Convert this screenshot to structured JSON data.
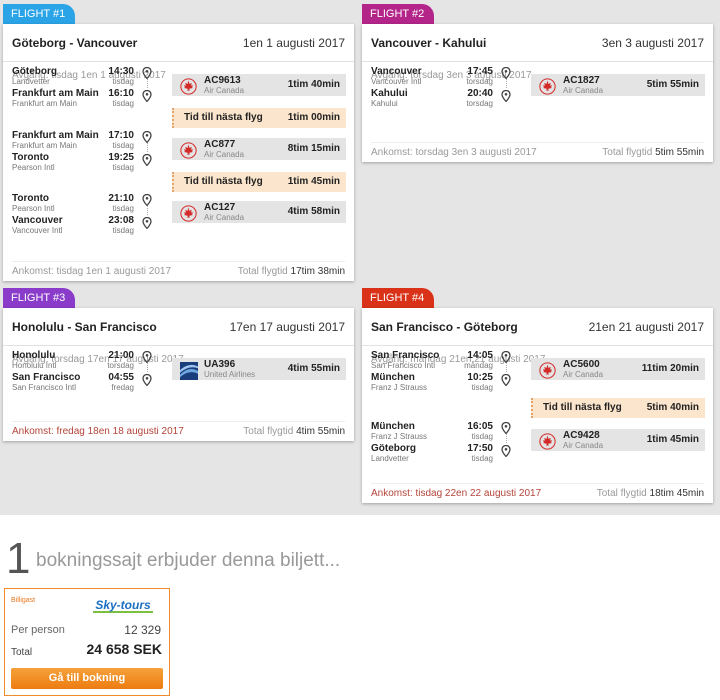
{
  "flights": [
    {
      "tab": "FLIGHT #1",
      "color": "#2aa4e6",
      "route": "Göteborg - Vancouver",
      "date": "1en 1 augusti 2017",
      "departure_label": "Avgång:",
      "departure_value": "tisdag 1en 1 augusti 2017",
      "arrival_label": "Ankomst:",
      "arrival_value": "tisdag 1en 1 augusti 2017",
      "total_label": "Total flygtid",
      "total_value": "17tim 38min",
      "segments": [
        {
          "from": "Göteborg",
          "from_ap": "Landvetter",
          "dep_time": "14:30",
          "dep_day": "tisdag",
          "to": "Frankfurt am Main",
          "to_ap": "Frankfurt am Main",
          "arr_time": "16:10",
          "arr_day": "tisdag",
          "flight": "AC9613",
          "airline": "Air Canada",
          "duration": "1tim 40min",
          "logo": "air-canada-icon"
        },
        {
          "from": "Frankfurt am Main",
          "from_ap": "Frankfurt am Main",
          "dep_time": "17:10",
          "dep_day": "tisdag",
          "to": "Toronto",
          "to_ap": "Pearson Intl",
          "arr_time": "19:25",
          "arr_day": "tisdag",
          "flight": "AC877",
          "airline": "Air Canada",
          "duration": "8tim 15min",
          "logo": "air-canada-icon"
        },
        {
          "from": "Toronto",
          "from_ap": "Pearson Intl",
          "dep_time": "21:10",
          "dep_day": "tisdag",
          "to": "Vancouver",
          "to_ap": "Vancouver Intl",
          "arr_time": "23:08",
          "arr_day": "tisdag",
          "flight": "AC127",
          "airline": "Air Canada",
          "duration": "4tim 58min",
          "logo": "air-canada-icon"
        }
      ],
      "layovers": [
        {
          "label": "Tid till nästa flyg",
          "duration": "1tim 00min"
        },
        {
          "label": "Tid till nästa flyg",
          "duration": "1tim 45min"
        }
      ]
    },
    {
      "tab": "FLIGHT #2",
      "color": "#b4258a",
      "route": "Vancouver - Kahului",
      "date": "3en 3 augusti 2017",
      "departure_label": "Avgång:",
      "departure_value": "torsdag 3en 3 augusti 2017",
      "arrival_label": "Ankomst:",
      "arrival_value": "torsdag 3en 3 augusti 2017",
      "total_label": "Total flygtid",
      "total_value": "5tim 55min",
      "segments": [
        {
          "from": "Vancouver",
          "from_ap": "Vancouver Intl",
          "dep_time": "17:45",
          "dep_day": "torsdag",
          "to": "Kahului",
          "to_ap": "Kahului",
          "arr_time": "20:40",
          "arr_day": "torsdag",
          "flight": "AC1827",
          "airline": "Air Canada",
          "duration": "5tim 55min",
          "logo": "air-canada-icon"
        }
      ],
      "layovers": []
    },
    {
      "tab": "FLIGHT #3",
      "color": "#8a3bc9",
      "route": "Honolulu - San Francisco",
      "date": "17en 17 augusti 2017",
      "departure_label": "Avgång:",
      "departure_value": "torsdag 17en 17 augusti 2017",
      "arrival_label": "Ankomst:",
      "arrival_value": "fredag 18en 18 augusti 2017",
      "total_label": "Total flygtid",
      "total_value": "4tim 55min",
      "segments": [
        {
          "from": "Honolulu",
          "from_ap": "Honolulu Intl",
          "dep_time": "21:00",
          "dep_day": "torsdag",
          "to": "San Francisco",
          "to_ap": "San Francisco Intl",
          "arr_time": "04:55",
          "arr_day": "fredag",
          "flight": "UA396",
          "airline": "United Airlines",
          "duration": "4tim 55min",
          "logo": "united-airlines-icon"
        }
      ],
      "layovers": []
    },
    {
      "tab": "FLIGHT #4",
      "color": "#d93218",
      "route": "San Francisco - Göteborg",
      "date": "21en 21 augusti 2017",
      "departure_label": "Avgång:",
      "departure_value": "måndag 21en 21 augusti 2017",
      "arrival_label": "Ankomst:",
      "arrival_value": "tisdag 22en 22 augusti 2017",
      "total_label": "Total flygtid",
      "total_value": "18tim 45min",
      "segments": [
        {
          "from": "San Francisco",
          "from_ap": "San Francisco Intl",
          "dep_time": "14:05",
          "dep_day": "måndag",
          "to": "München",
          "to_ap": "Franz J Strauss",
          "arr_time": "10:25",
          "arr_day": "tisdag",
          "flight": "AC5600",
          "airline": "Air Canada",
          "duration": "11tim 20min",
          "logo": "air-canada-icon"
        },
        {
          "from": "München",
          "from_ap": "Franz J Strauss",
          "dep_time": "16:05",
          "dep_day": "tisdag",
          "to": "Göteborg",
          "to_ap": "Landvetter",
          "arr_time": "17:50",
          "arr_day": "tisdag",
          "flight": "AC9428",
          "airline": "Air Canada",
          "duration": "1tim 45min",
          "logo": "air-canada-icon"
        }
      ],
      "layovers": [
        {
          "label": "Tid till nästa flyg",
          "duration": "5tim 40min"
        }
      ]
    }
  ],
  "booking": {
    "count": "1",
    "text": "bokningssajt erbjuder denna biljett...",
    "offer": {
      "cheapest_label": "Billigast",
      "site_logo": "Sky-tours",
      "per_person_label": "Per person",
      "per_person_value": "12 329",
      "total_label": "Total",
      "total_value": "24 658 SEK",
      "button_label": "Gå till bokning"
    }
  }
}
